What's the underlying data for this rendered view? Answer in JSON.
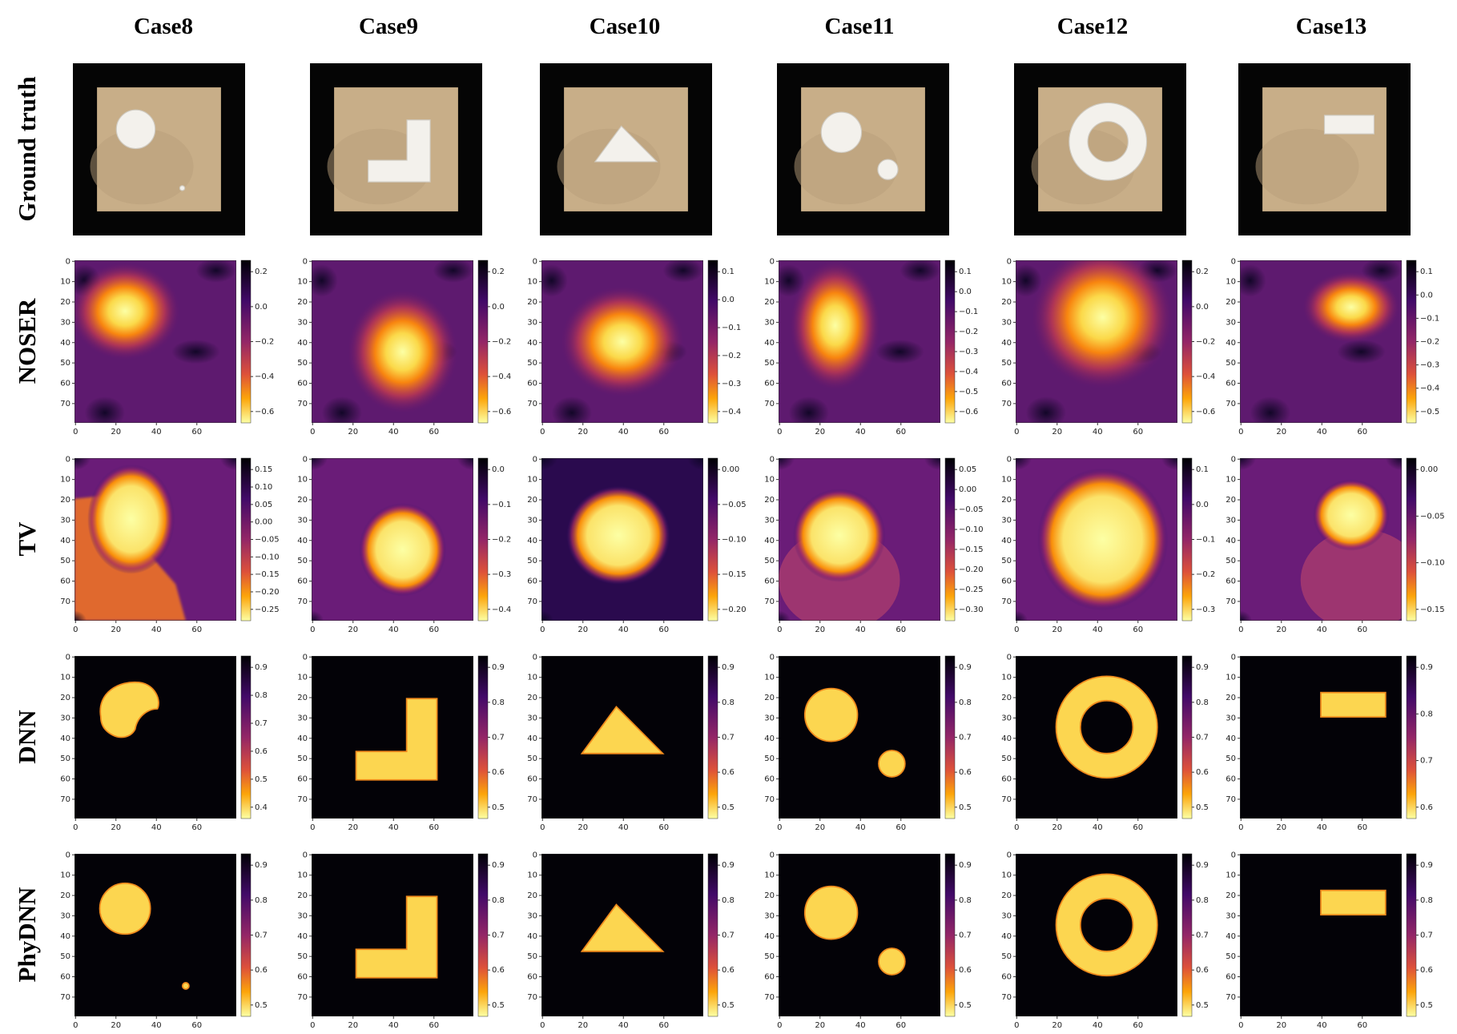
{
  "columns": [
    "Case8",
    "Case9",
    "Case10",
    "Case11",
    "Case12",
    "Case13"
  ],
  "row_labels": [
    "Ground truth",
    "NOSER",
    "TV",
    "DNN",
    "PhyDNN"
  ],
  "axis": {
    "yticks": [
      "0",
      "10",
      "20",
      "30",
      "40",
      "50",
      "60",
      "70"
    ],
    "xticks": [
      "0",
      "20",
      "40",
      "60"
    ]
  },
  "colorbars": [
    [
      [
        "0.2",
        "0.0",
        "−0.2",
        "−0.4",
        "−0.6"
      ],
      [
        "0.2",
        "0.0",
        "−0.2",
        "−0.4",
        "−0.6"
      ],
      [
        "0.1",
        "0.0",
        "−0.1",
        "−0.2",
        "−0.3",
        "−0.4"
      ],
      [
        "0.1",
        "0.0",
        "−0.1",
        "−0.2",
        "−0.3",
        "−0.4",
        "−0.5",
        "−0.6"
      ],
      [
        "0.2",
        "0.0",
        "−0.2",
        "−0.4",
        "−0.6"
      ],
      [
        "0.1",
        "0.0",
        "−0.1",
        "−0.2",
        "−0.3",
        "−0.4",
        "−0.5"
      ]
    ],
    [
      [
        "0.15",
        "0.10",
        "0.05",
        "0.00",
        "−0.05",
        "−0.10",
        "−0.15",
        "−0.20",
        "−0.25"
      ],
      [
        "0.0",
        "−0.1",
        "−0.2",
        "−0.3",
        "−0.4"
      ],
      [
        "0.00",
        "−0.05",
        "−0.10",
        "−0.15",
        "−0.20"
      ],
      [
        "0.05",
        "0.00",
        "−0.05",
        "−0.10",
        "−0.15",
        "−0.20",
        "−0.25",
        "−0.30"
      ],
      [
        "0.1",
        "0.0",
        "−0.1",
        "−0.2",
        "−0.3"
      ],
      [
        "0.00",
        "−0.05",
        "−0.10",
        "−0.15"
      ]
    ],
    [
      [
        "0.9",
        "0.8",
        "0.7",
        "0.6",
        "0.5",
        "0.4"
      ],
      [
        "0.9",
        "0.8",
        "0.7",
        "0.6",
        "0.5"
      ],
      [
        "0.9",
        "0.8",
        "0.7",
        "0.6",
        "0.5"
      ],
      [
        "0.9",
        "0.8",
        "0.7",
        "0.6",
        "0.5"
      ],
      [
        "0.9",
        "0.8",
        "0.7",
        "0.6",
        "0.5"
      ],
      [
        "0.9",
        "0.8",
        "0.7",
        "0.6"
      ]
    ],
    [
      [
        "0.9",
        "0.8",
        "0.7",
        "0.6",
        "0.5"
      ],
      [
        "0.9",
        "0.8",
        "0.7",
        "0.6",
        "0.5"
      ],
      [
        "0.9",
        "0.8",
        "0.7",
        "0.6",
        "0.5"
      ],
      [
        "0.9",
        "0.8",
        "0.7",
        "0.6",
        "0.5"
      ],
      [
        "0.9",
        "0.8",
        "0.7",
        "0.6",
        "0.5"
      ],
      [
        "0.9",
        "0.8",
        "0.7",
        "0.6",
        "0.5"
      ]
    ]
  ]
}
